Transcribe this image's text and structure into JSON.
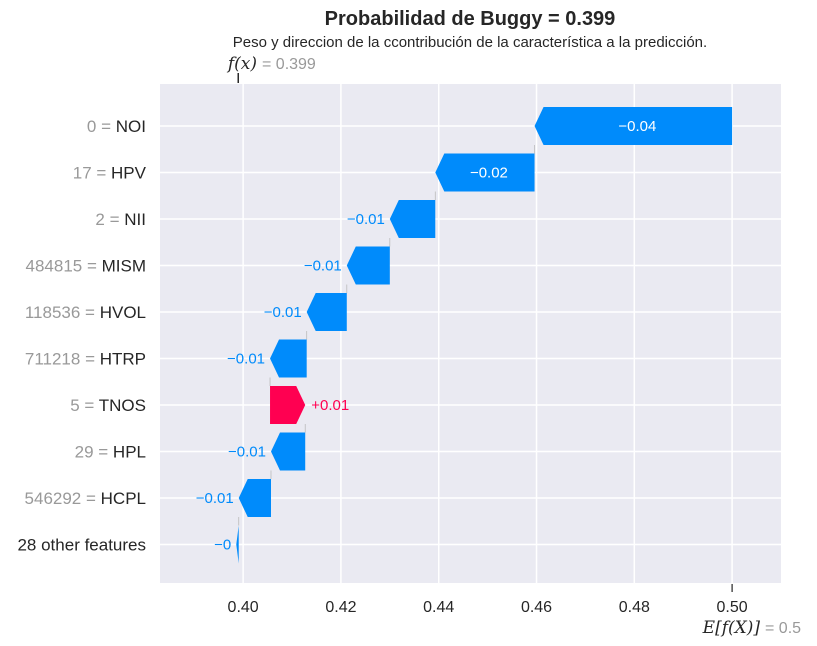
{
  "chart_data": {
    "type": "waterfall",
    "title": "Probabilidad de Buggy = 0.399",
    "subtitle": "Peso y direccion de la ccontribución de la característica a la predicción.",
    "fx_symbol": "f(x)",
    "fx_value_label": "= 0.399",
    "fx_value": 0.399,
    "base_symbol": "E[f(X)]",
    "base_value_label": "= 0.5",
    "base_value": 0.5,
    "xlim": [
      0.383,
      0.51
    ],
    "xticks": [
      0.4,
      0.42,
      0.44,
      0.46,
      0.48,
      0.5
    ],
    "xtick_labels": [
      "0.40",
      "0.42",
      "0.44",
      "0.46",
      "0.48",
      "0.50"
    ],
    "grid": true,
    "features": [
      {
        "value_text": "0 =",
        "name": "NOI",
        "contribution": -0.0404,
        "label": "−0.04"
      },
      {
        "value_text": "17 =",
        "name": "HPV",
        "contribution": -0.0203,
        "label": "−0.02"
      },
      {
        "value_text": "2 =",
        "name": "NII",
        "contribution": -0.0093,
        "label": "−0.01"
      },
      {
        "value_text": "484815 =",
        "name": "MISM",
        "contribution": -0.0088,
        "label": "−0.01"
      },
      {
        "value_text": "118536 =",
        "name": "HVOL",
        "contribution": -0.0082,
        "label": "−0.01"
      },
      {
        "value_text": "711218 =",
        "name": "HTRP",
        "contribution": -0.0075,
        "label": "−0.01"
      },
      {
        "value_text": "5 =",
        "name": "TNOS",
        "contribution": 0.0072,
        "label": "+0.01"
      },
      {
        "value_text": "29 =",
        "name": "HPL",
        "contribution": -0.007,
        "label": "−0.01"
      },
      {
        "value_text": "546292 =",
        "name": "HCPL",
        "contribution": -0.0066,
        "label": "−0.01"
      },
      {
        "value_text": "",
        "name": "28 other features",
        "contribution": -0.0005,
        "label": "−0"
      }
    ],
    "colors": {
      "negative": "#008bfb",
      "positive": "#ff0051",
      "background": "#eaeaf2",
      "grid": "#ffffff"
    }
  }
}
